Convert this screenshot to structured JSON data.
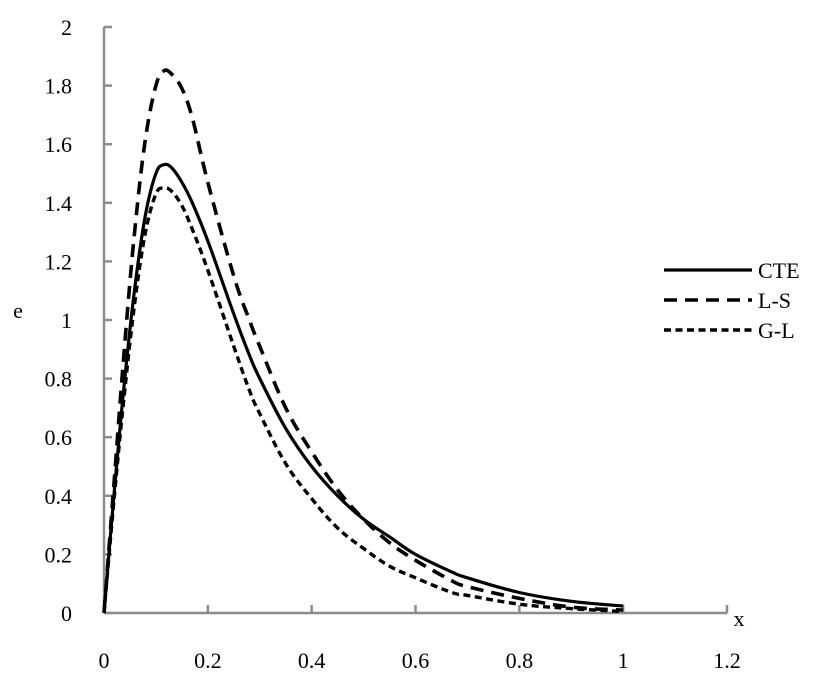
{
  "chart_data": {
    "type": "line",
    "title": "",
    "xlabel": "x",
    "ylabel": "e",
    "xlim": [
      0,
      1.2
    ],
    "ylim": [
      0,
      2
    ],
    "x_ticks": [
      "0",
      "0.2",
      "0.4",
      "0.6",
      "0.8",
      "1",
      "1.2"
    ],
    "y_ticks": [
      "0",
      "0.2",
      "0.4",
      "0.6",
      "0.8",
      "1",
      "1.2",
      "1.4",
      "1.6",
      "1.8",
      "2"
    ],
    "grid": false,
    "legend_position": "right",
    "x": [
      0,
      0.02,
      0.04,
      0.06,
      0.08,
      0.1,
      0.115,
      0.13,
      0.15,
      0.17,
      0.2,
      0.25,
      0.28,
      0.3,
      0.35,
      0.4,
      0.45,
      0.5,
      0.55,
      0.6,
      0.67,
      0.7,
      0.8,
      0.9,
      1.0
    ],
    "series": [
      {
        "name": "CTE",
        "style": "solid",
        "values": [
          0,
          0.42,
          0.8,
          1.12,
          1.36,
          1.5,
          1.53,
          1.52,
          1.47,
          1.4,
          1.27,
          1.02,
          0.88,
          0.8,
          0.63,
          0.5,
          0.4,
          0.32,
          0.26,
          0.2,
          0.14,
          0.12,
          0.07,
          0.04,
          0.024
        ]
      },
      {
        "name": "L-S",
        "style": "long-dash",
        "values": [
          0,
          0.46,
          0.92,
          1.32,
          1.62,
          1.8,
          1.85,
          1.84,
          1.79,
          1.69,
          1.47,
          1.15,
          1.0,
          0.91,
          0.7,
          0.55,
          0.42,
          0.32,
          0.24,
          0.18,
          0.11,
          0.09,
          0.05,
          0.02,
          0.01
        ]
      },
      {
        "name": "G-L",
        "style": "short-dash",
        "values": [
          0,
          0.4,
          0.76,
          1.07,
          1.3,
          1.43,
          1.45,
          1.44,
          1.39,
          1.31,
          1.17,
          0.91,
          0.76,
          0.68,
          0.51,
          0.39,
          0.29,
          0.22,
          0.16,
          0.12,
          0.07,
          0.06,
          0.03,
          0.015,
          0.005
        ]
      }
    ]
  },
  "colors": {
    "axis": "#8c8c8c",
    "series": "#000000",
    "background": "#ffffff"
  }
}
